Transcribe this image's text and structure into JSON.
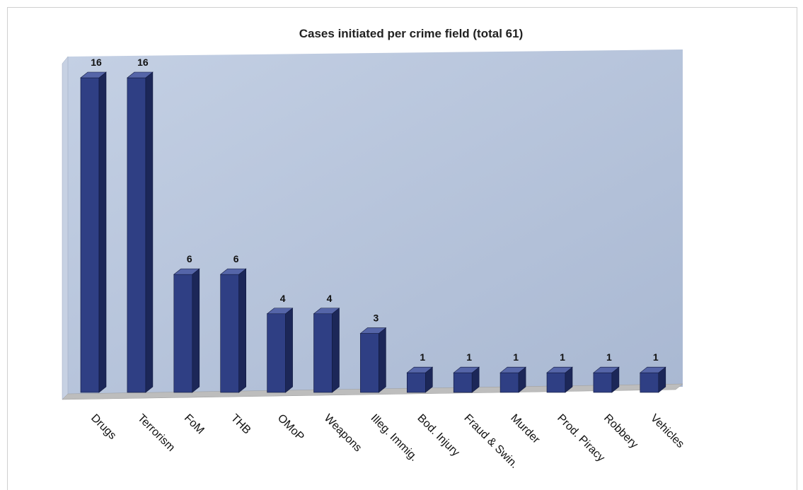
{
  "chart_data": {
    "type": "bar",
    "title": "Cases initiated per crime field (total 61)",
    "categories": [
      "Drugs",
      "Terrorism",
      "FoM",
      "THB",
      "OMoP",
      "Weapons",
      "Illeg. Immig.",
      "Bod. Injury",
      "Fraud & Swin.",
      "Murder",
      "Prod. Piracy",
      "Robbery",
      "Vehicles"
    ],
    "values": [
      16,
      16,
      6,
      6,
      4,
      4,
      3,
      1,
      1,
      1,
      1,
      1,
      1
    ],
    "ylim": [
      0,
      16
    ],
    "xlabel": "",
    "ylabel": "",
    "grid": false,
    "legend": "none",
    "style": "3d-bar",
    "colors": {
      "bar_front": "#2f3f84",
      "bar_side": "#1c2758",
      "bar_top": "#5565a8",
      "wall": "#b5c3da",
      "floor": "#bdbdbd"
    }
  }
}
